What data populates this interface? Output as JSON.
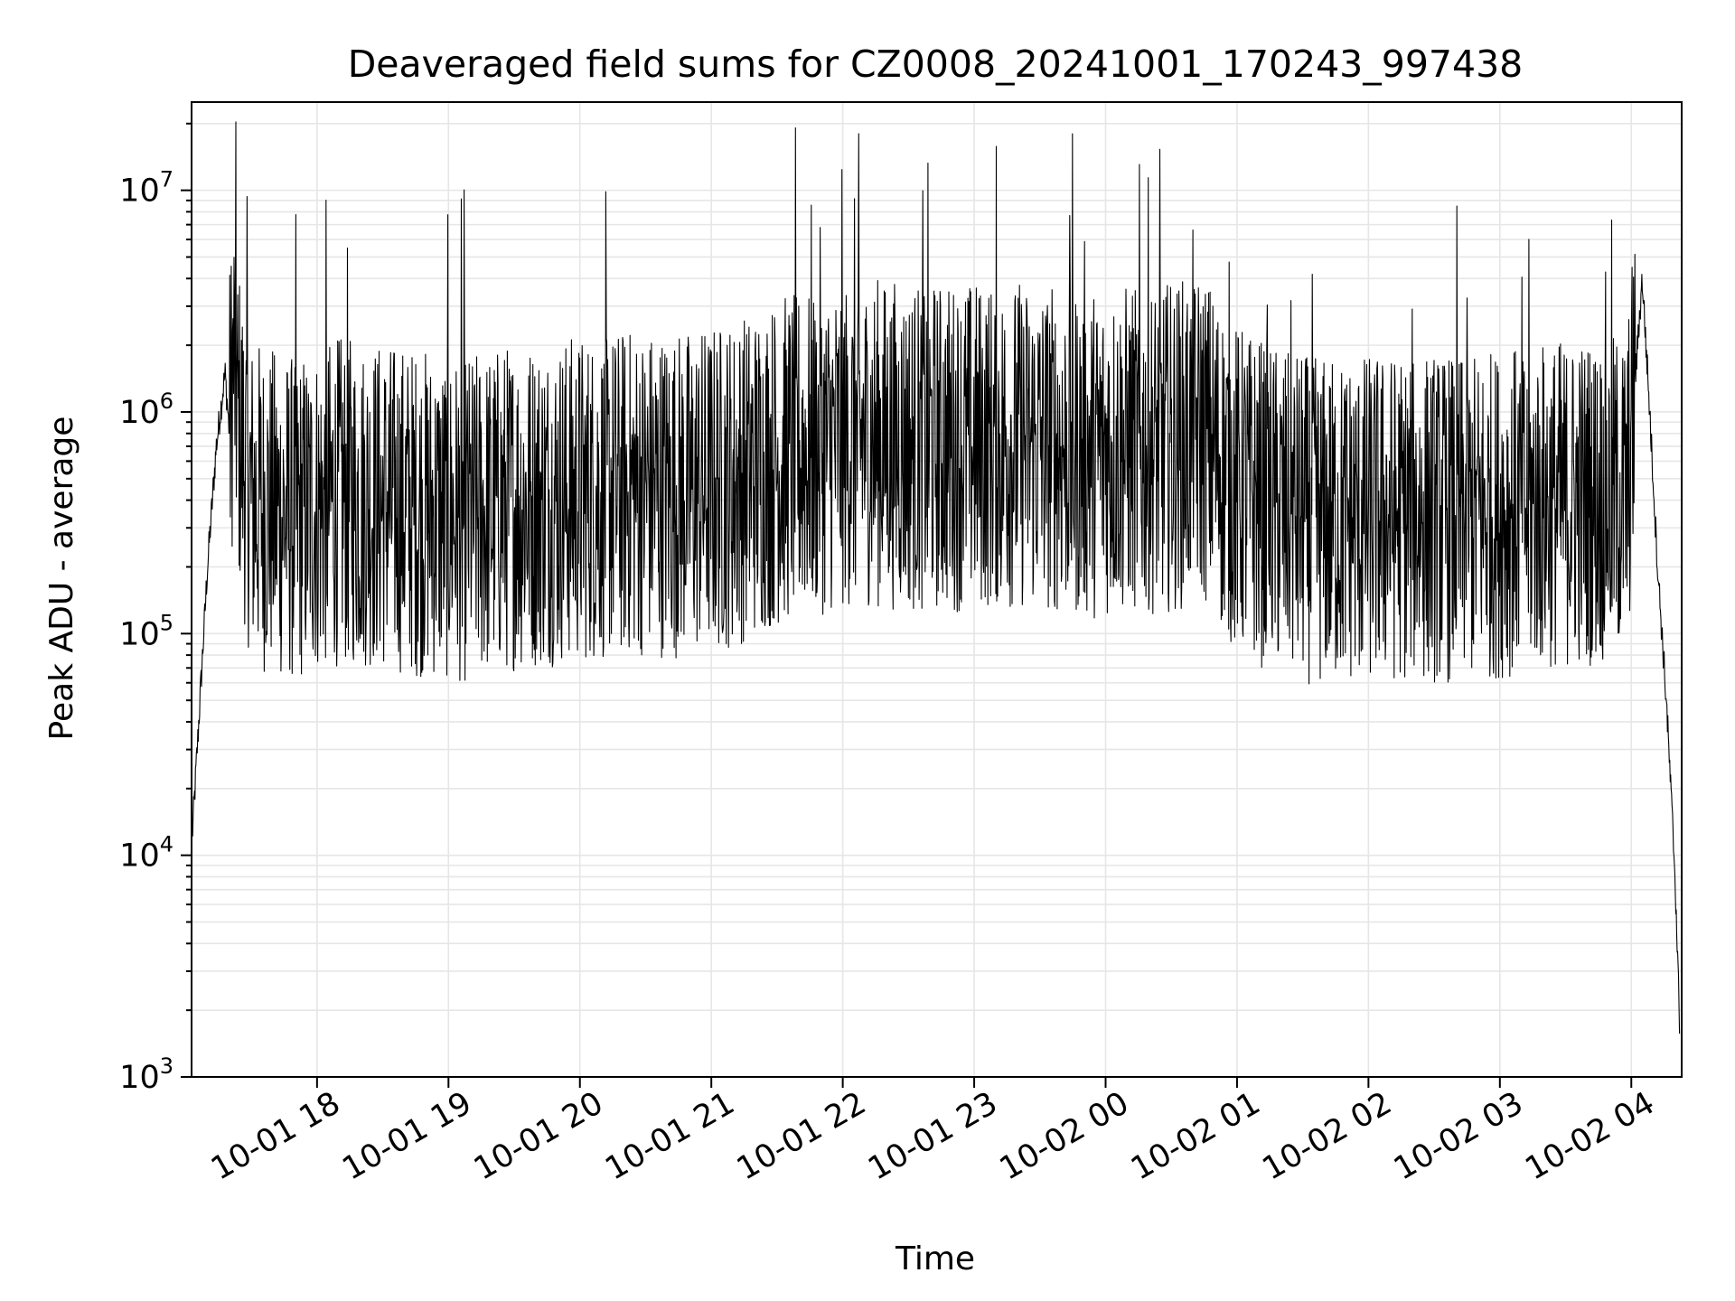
{
  "chart_data": {
    "type": "line",
    "title": "Deaveraged field sums for CZ0008_20241001_170243_997438",
    "xlabel": "Time",
    "ylabel": "Peak ADU - average",
    "xlim": [
      "2024-10-01 17:02:43",
      "2024-10-02 04:23:00"
    ],
    "ylim": [
      1000,
      25000000
    ],
    "y_scale": "log",
    "grid": true,
    "line_color": "#000000",
    "x_ticks": [
      {
        "time": "2024-10-01 18:00",
        "label": "10-01 18"
      },
      {
        "time": "2024-10-01 19:00",
        "label": "10-01 19"
      },
      {
        "time": "2024-10-01 20:00",
        "label": "10-01 20"
      },
      {
        "time": "2024-10-01 21:00",
        "label": "10-01 21"
      },
      {
        "time": "2024-10-01 22:00",
        "label": "10-01 22"
      },
      {
        "time": "2024-10-01 23:00",
        "label": "10-01 23"
      },
      {
        "time": "2024-10-02 00:00",
        "label": "10-02 00"
      },
      {
        "time": "2024-10-02 01:00",
        "label": "10-02 01"
      },
      {
        "time": "2024-10-02 02:00",
        "label": "10-02 02"
      },
      {
        "time": "2024-10-02 03:00",
        "label": "10-02 03"
      },
      {
        "time": "2024-10-02 04:00",
        "label": "10-02 04"
      }
    ],
    "y_ticks": [
      {
        "value": 1000,
        "base": "10",
        "exp": "3"
      },
      {
        "value": 10000,
        "base": "10",
        "exp": "4"
      },
      {
        "value": 100000,
        "base": "10",
        "exp": "5"
      },
      {
        "value": 1000000,
        "base": "10",
        "exp": "6"
      },
      {
        "value": 10000000,
        "base": "10",
        "exp": "7"
      }
    ],
    "series": [
      {
        "x": [
          "2024-10-01 17:03",
          "2024-10-01 17:06",
          "2024-10-01 17:10",
          "2024-10-01 17:14",
          "2024-10-01 17:18",
          "2024-10-01 17:20",
          "2024-10-01 17:22",
          "2024-10-01 17:24",
          "2024-10-01 17:27",
          "2024-10-01 17:30",
          "2024-10-01 17:40",
          "2024-10-01 17:50",
          "2024-10-01 18:10",
          "2024-10-01 18:30",
          "2024-10-01 18:50",
          "2024-10-01 19:10",
          "2024-10-01 19:30",
          "2024-10-01 19:50",
          "2024-10-01 20:10",
          "2024-10-01 20:30",
          "2024-10-01 20:50",
          "2024-10-01 21:10",
          "2024-10-01 21:30",
          "2024-10-01 21:50",
          "2024-10-01 22:10",
          "2024-10-01 22:30",
          "2024-10-01 22:50",
          "2024-10-01 23:10",
          "2024-10-01 23:30",
          "2024-10-01 23:50",
          "2024-10-02 00:10",
          "2024-10-02 00:30",
          "2024-10-02 00:45",
          "2024-10-02 01:00",
          "2024-10-02 01:20",
          "2024-10-02 01:40",
          "2024-10-02 02:00",
          "2024-10-02 02:20",
          "2024-10-02 02:40",
          "2024-10-02 03:00",
          "2024-10-02 03:20",
          "2024-10-02 03:40",
          "2024-10-02 03:58",
          "2024-10-02 04:02",
          "2024-10-02 04:05",
          "2024-10-02 04:08",
          "2024-10-02 04:12",
          "2024-10-02 04:16",
          "2024-10-02 04:20",
          "2024-10-02 04:22"
        ],
        "y": [
          12000,
          40000,
          200000,
          700000,
          1500000,
          800000,
          1800000,
          900000,
          600000,
          400000,
          350000,
          330000,
          400000,
          380000,
          350000,
          330000,
          380000,
          400000,
          420000,
          440000,
          430000,
          480000,
          600000,
          680000,
          750000,
          700000,
          700000,
          720000,
          710000,
          650000,
          680000,
          700000,
          780000,
          450000,
          350000,
          320000,
          330000,
          340000,
          330000,
          350000,
          380000,
          400000,
          420000,
          1500000,
          4000000,
          1200000,
          200000,
          50000,
          8000,
          1800
        ]
      }
    ]
  }
}
